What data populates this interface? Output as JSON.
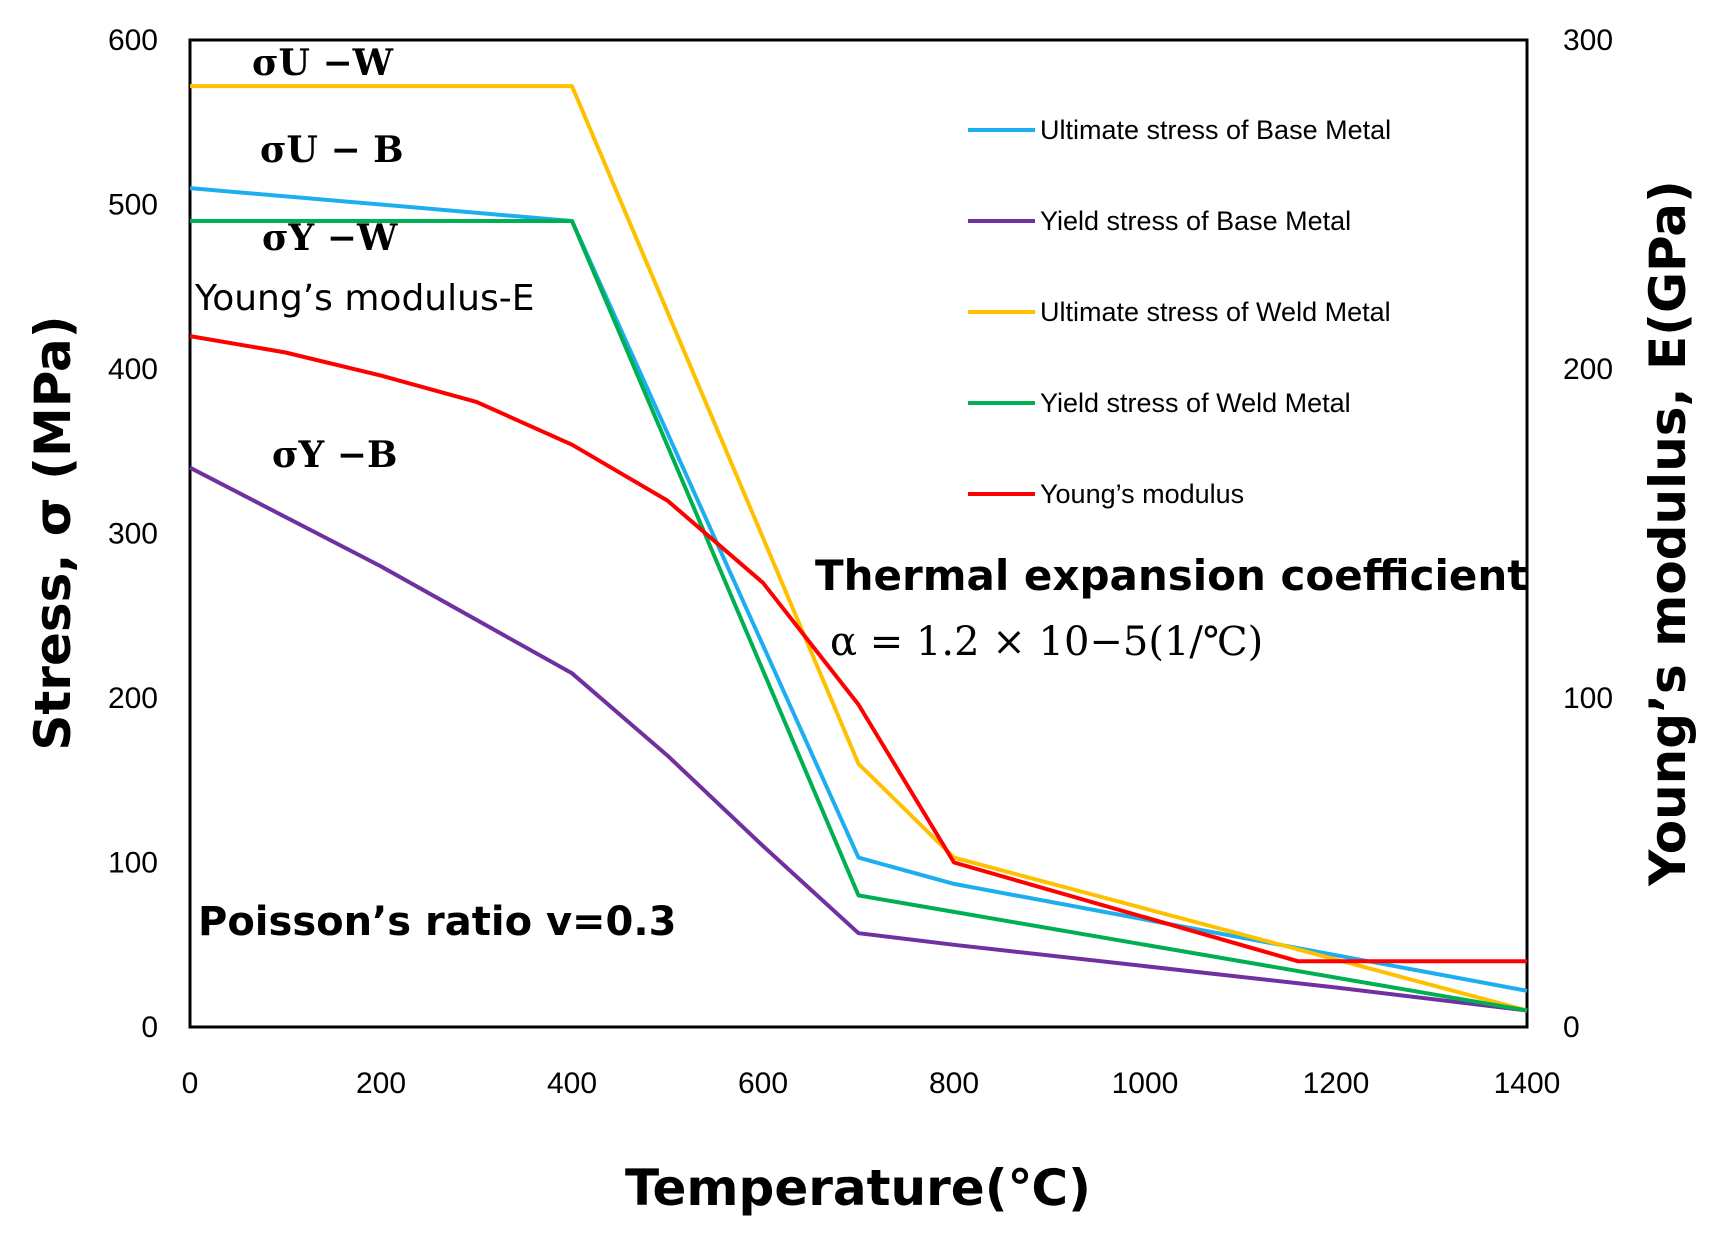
{
  "chart_data": {
    "type": "line",
    "x_label": "Temperature(℃)",
    "y_left_label": "Stress, σ (MPa)",
    "y_right_label": "Young’s modulus, E(GPa)",
    "x_range": [
      0,
      1400
    ],
    "y_left_range": [
      0,
      600
    ],
    "y_right_range": [
      0,
      300
    ],
    "x_ticks": [
      "0",
      "200",
      "400",
      "600",
      "800",
      "1000",
      "1200",
      "1400"
    ],
    "y_left_ticks": [
      "0",
      "100",
      "200",
      "300",
      "400",
      "500",
      "600"
    ],
    "y_right_ticks": [
      "0",
      "100",
      "200",
      "300"
    ],
    "legend_position": "top-right",
    "series": [
      {
        "name": "Ultimate stress of Base Metal",
        "color": "#1EAEF0",
        "axis": "left",
        "points": [
          [
            0,
            510
          ],
          [
            400,
            490
          ],
          [
            700,
            103
          ],
          [
            800,
            87
          ],
          [
            1400,
            22
          ]
        ]
      },
      {
        "name": "Yield stress of Base Metal",
        "color": "#7030A0",
        "axis": "left",
        "points": [
          [
            0,
            340
          ],
          [
            200,
            280
          ],
          [
            400,
            215
          ],
          [
            500,
            165
          ],
          [
            600,
            110
          ],
          [
            700,
            57
          ],
          [
            800,
            50
          ],
          [
            1200,
            24
          ],
          [
            1400,
            10
          ]
        ]
      },
      {
        "name": "Ultimate stress of Weld Metal",
        "color": "#FFC000",
        "axis": "left",
        "points": [
          [
            0,
            572
          ],
          [
            400,
            572
          ],
          [
            700,
            160
          ],
          [
            800,
            103
          ],
          [
            1400,
            10
          ]
        ]
      },
      {
        "name": "Yield stress of Weld Metal",
        "color": "#00B050",
        "axis": "left",
        "points": [
          [
            0,
            490
          ],
          [
            400,
            490
          ],
          [
            700,
            80
          ],
          [
            800,
            70
          ],
          [
            1400,
            10
          ]
        ]
      },
      {
        "name": "Young’s modulus",
        "color": "#FF0000",
        "axis": "right",
        "points": [
          [
            0,
            210
          ],
          [
            100,
            205
          ],
          [
            200,
            198
          ],
          [
            300,
            190
          ],
          [
            400,
            177
          ],
          [
            500,
            160
          ],
          [
            600,
            135
          ],
          [
            700,
            98
          ],
          [
            800,
            50
          ],
          [
            1160,
            20
          ],
          [
            1400,
            20
          ]
        ]
      }
    ],
    "annotations": {
      "sigma_u_w": "σU −W",
      "sigma_u_b": "σU − B",
      "sigma_y_w": "σY −W",
      "youngs_e": "Young’s modulus-E",
      "sigma_y_b": "σY −B",
      "poisson": "Poisson’s ratio v=0.3",
      "thermal_title": "Thermal expansion coefficient",
      "thermal_value": "α = 1.2 × 10−5(1/℃)"
    }
  }
}
